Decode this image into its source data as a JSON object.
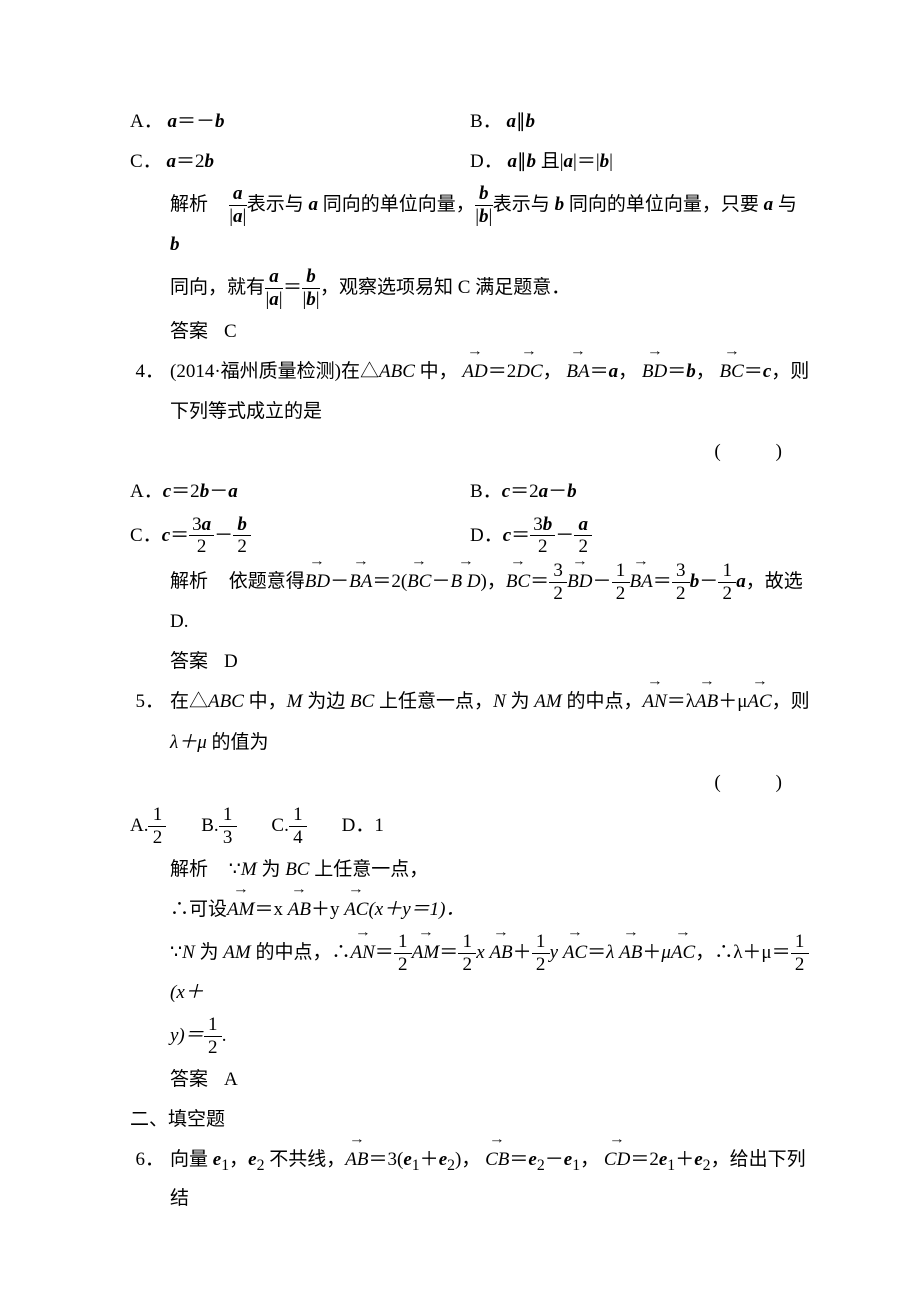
{
  "q3": {
    "options": {
      "A_label": "A．",
      "A_text_prefix": "a＝－b",
      "B_label": "B．",
      "B_text": "a∥b",
      "C_label": "C．",
      "C_text": "a＝2b",
      "D_label": "D．",
      "D_text_prefix": "a∥b",
      "D_text_mid": " 且|",
      "D_text_mid2": "|＝|",
      "D_text_end": "|"
    },
    "analysis_label": "解析",
    "analysis_part1": "表示与 ",
    "analysis_part2": " 同向的单位向量，",
    "analysis_part3": "表示与 ",
    "analysis_part4": " 同向的单位向量，只要 ",
    "analysis_part5": " 与 ",
    "analysis_line2_pre": "同向，就有",
    "analysis_line2_mid": "＝",
    "analysis_line2_post": "，观察选项易知 C 满足题意．",
    "answer_label": "答案",
    "answer": "C"
  },
  "q4": {
    "num": "4．",
    "stem_pre": "(2014·福州质量检测)在△",
    "stem_abc": "ABC",
    "stem_mid": " 中，",
    "stem_eq1_l": "AD",
    "stem_eq1_r": "＝2",
    "stem_eq1_r2": "DC",
    "stem_sep": "，",
    "stem_eq2_l": "BA",
    "stem_eq2_r": "＝",
    "stem_eq3_l": "BD",
    "stem_eq4_l": "BC",
    "stem_eq4_r": "＝",
    "stem_tail": "，则",
    "stem_line2": "下列等式成立的是",
    "options": {
      "A_label": "A．",
      "B_label": "B．",
      "C_label": "C．",
      "D_label": "D．"
    },
    "analysis_label": "解析",
    "analysis_pre": "依题意得",
    "analysis_BD": "BD",
    "analysis_BA": "BA",
    "analysis_BC": "BC",
    "analysis_tail": "，故选 D.",
    "answer_label": "答案",
    "answer": "D"
  },
  "q5": {
    "num": "5．",
    "stem_pre": "在△",
    "stem_abc": "ABC",
    "stem_mid1": " 中，",
    "stem_M": "M",
    "stem_mid2": " 为边 ",
    "stem_BC": "BC",
    "stem_mid3": " 上任意一点，",
    "stem_N": "N",
    "stem_mid4": " 为 ",
    "stem_AM": "AM",
    "stem_mid5": " 的中点，",
    "stem_AN": "AN",
    "stem_eq": "＝λ",
    "stem_AB": "AB",
    "stem_plus": "＋μ",
    "stem_AC": "AC",
    "stem_tail": "，则",
    "stem_line2_pre": "λ＋μ",
    "stem_line2_post": " 的值为",
    "options": {
      "A_label": "A.",
      "B_label": "B.",
      "C_label": "C.",
      "D_label": "D．",
      "D_text": "1"
    },
    "analysis_label": "解析",
    "analysis_l1_pre": "∵",
    "analysis_l1_mid": " 为 ",
    "analysis_l1_post": " 上任意一点，",
    "analysis_l2_pre": "∴可设",
    "analysis_l2_eq": "＝x ",
    "analysis_l2_mid": "＋y ",
    "analysis_l2_post": "(x＋y＝1)．",
    "analysis_l3_pre": "∵",
    "analysis_l3_mid1": " 为 ",
    "analysis_l3_mid2": " 的中点，∴",
    "analysis_l3_tail": "，∴λ＋μ＝",
    "analysis_l3_end": "(x＋",
    "analysis_l4": "y)＝",
    "answer_label": "答案",
    "answer": "A"
  },
  "section2": "二、填空题",
  "q6": {
    "num": "6．",
    "stem_pre": "向量 ",
    "stem_mid1": "，",
    "stem_mid2": " 不共线，",
    "stem_AB": "AB",
    "stem_eq1": "＝3(",
    "stem_plus": "＋",
    "stem_close": ")，",
    "stem_CB": "CB",
    "stem_eq2": "＝",
    "stem_minus": "－",
    "stem_sep": "，",
    "stem_CD": "CD",
    "stem_eq3": "＝2",
    "stem_tail": "，给出下列结"
  },
  "frac_vals": {
    "three": "3",
    "two": "2",
    "one": "1",
    "four": "4"
  }
}
